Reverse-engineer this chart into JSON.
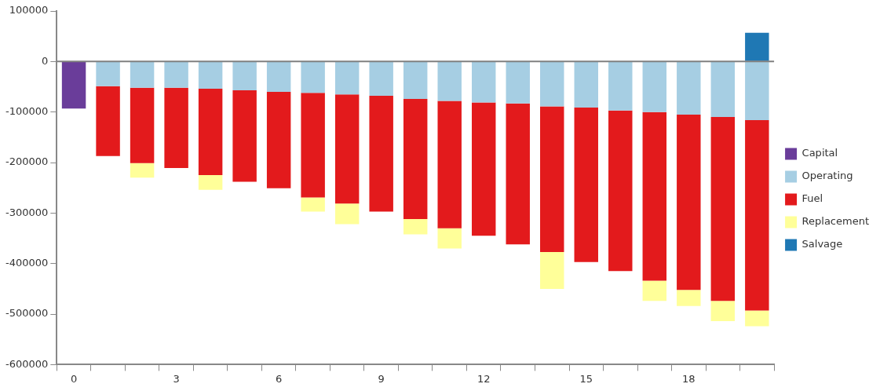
{
  "chart_data": {
    "type": "bar",
    "stacked": true,
    "categories": [
      "0",
      null,
      null,
      "3",
      null,
      null,
      "6",
      null,
      null,
      "9",
      null,
      null,
      "12",
      null,
      null,
      "15",
      null,
      null,
      "18",
      null,
      null
    ],
    "series": [
      {
        "name": "Capital",
        "color": "#6a3d9a",
        "values": [
          -93000,
          null,
          null,
          null,
          null,
          null,
          null,
          null,
          null,
          null,
          null,
          null,
          null,
          null,
          null,
          null,
          null,
          null,
          null,
          null,
          null
        ]
      },
      {
        "name": "Operating",
        "color": "#a6cee3",
        "values": [
          null,
          -49000,
          -52000,
          -52000,
          -54000,
          -57000,
          -60000,
          -62000,
          -65000,
          -68000,
          -74000,
          -78000,
          -81000,
          -83000,
          -89000,
          -91000,
          -97000,
          -100000,
          -105000,
          -110000,
          -116000
        ]
      },
      {
        "name": "Fuel",
        "color": "#e31a1c",
        "values": [
          null,
          -138000,
          -149000,
          -159000,
          -171000,
          -181000,
          -191000,
          -207000,
          -216000,
          -229000,
          -238000,
          -252000,
          -264000,
          -279000,
          -288000,
          -306000,
          -318000,
          -334000,
          -347000,
          -364000,
          -377000
        ]
      },
      {
        "name": "Replacement",
        "color": "#ffff99",
        "values": [
          null,
          null,
          -29000,
          null,
          -29000,
          null,
          null,
          -28000,
          -41000,
          null,
          -30000,
          -40000,
          null,
          null,
          -73000,
          null,
          null,
          -40000,
          -32000,
          -40000,
          -31000
        ]
      },
      {
        "name": "Salvage",
        "color": "#1f78b4",
        "values": [
          null,
          null,
          null,
          null,
          null,
          null,
          null,
          null,
          null,
          null,
          null,
          null,
          null,
          null,
          null,
          null,
          null,
          null,
          null,
          null,
          57000
        ]
      }
    ],
    "ylim": [
      -600000,
      100000
    ],
    "yticks": [
      -600000,
      -500000,
      -400000,
      -300000,
      -200000,
      -100000,
      0,
      100000
    ],
    "ref_lines": [
      {
        "axis": "y",
        "value": 0,
        "color": "#808080"
      }
    ],
    "grid": false,
    "legend": "right"
  }
}
